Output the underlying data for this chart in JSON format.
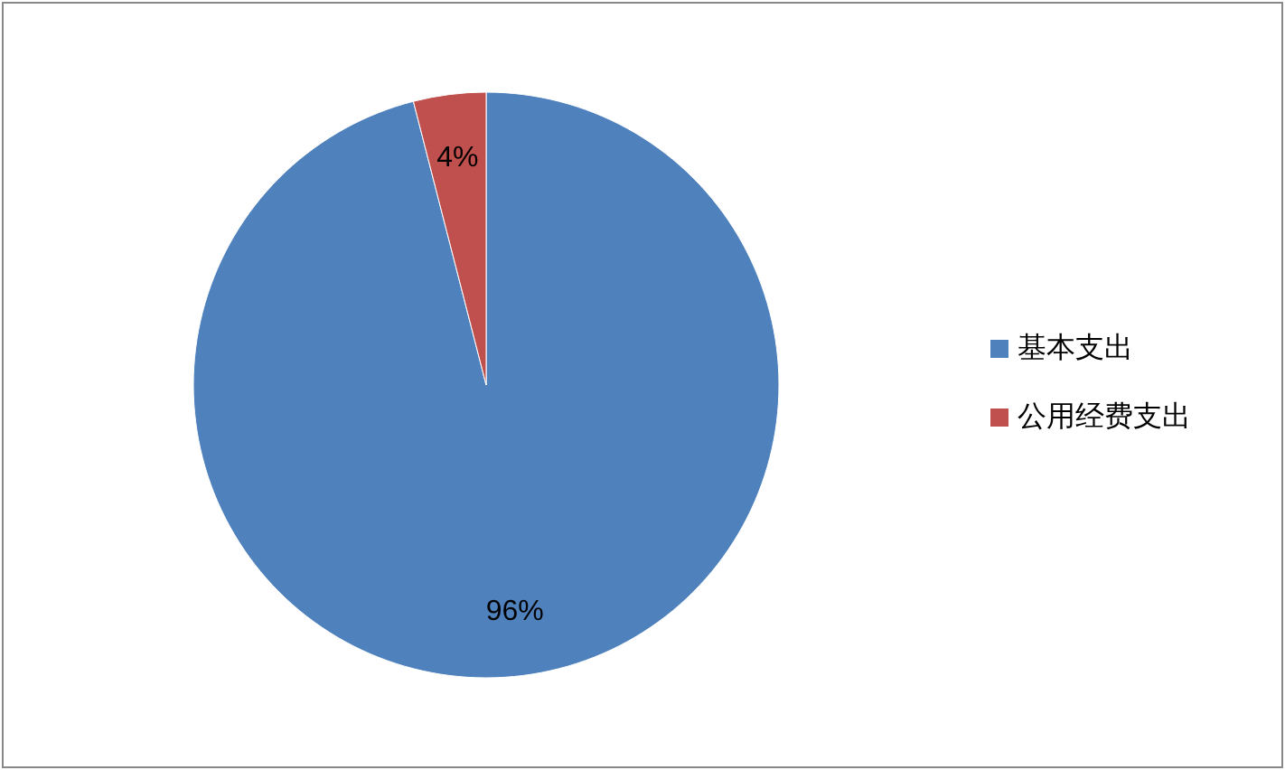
{
  "chart_data": {
    "type": "pie",
    "categories": [
      "基本支出",
      "公用经费支出"
    ],
    "values": [
      96,
      4
    ],
    "colors": [
      "#4f81bd",
      "#c0504d"
    ],
    "value_labels": [
      "96%",
      "4%"
    ],
    "legend": "right"
  }
}
